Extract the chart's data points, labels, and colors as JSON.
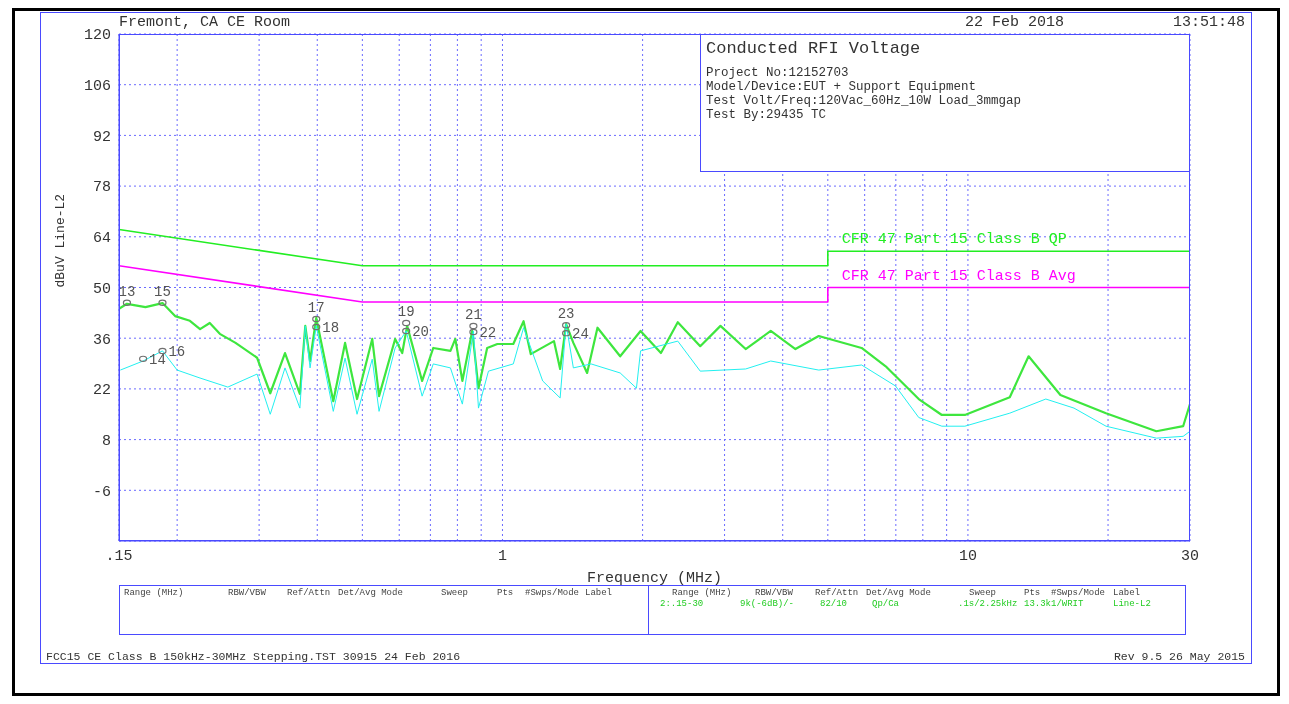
{
  "chart_data": {
    "type": "line",
    "title": "Conducted RFI Voltage",
    "xlabel": "Frequency (MHz)",
    "ylabel": "dBuV Line-L2",
    "log": "x",
    "grid": true,
    "legend": false,
    "xlim": [
      0.15,
      30
    ],
    "xticks": [
      {
        "value": 0.15,
        "label": ".15"
      },
      {
        "value": 0.2,
        "label": null
      },
      {
        "value": 0.3,
        "label": null
      },
      {
        "value": 0.4,
        "label": null
      },
      {
        "value": 0.5,
        "label": null
      },
      {
        "value": 0.6,
        "label": null
      },
      {
        "value": 0.7,
        "label": null
      },
      {
        "value": 0.8,
        "label": null
      },
      {
        "value": 0.9,
        "label": null
      },
      1,
      {
        "value": 2,
        "label": null
      },
      {
        "value": 3,
        "label": null
      },
      {
        "value": 4,
        "label": null
      },
      {
        "value": 5,
        "label": null
      },
      {
        "value": 6,
        "label": null
      },
      {
        "value": 7,
        "label": null
      },
      {
        "value": 8,
        "label": null
      },
      {
        "value": 9,
        "label": null
      },
      10,
      {
        "value": 20,
        "label": null
      },
      30
    ],
    "ylim": [
      -20,
      120
    ],
    "yticks": [
      -6,
      8,
      22,
      36,
      50,
      64,
      78,
      92,
      106,
      120
    ],
    "series": [
      {
        "color": "#3ee63e",
        "x": [
          0.15,
          0.156,
          0.171,
          0.186,
          0.198,
          0.213,
          0.224,
          0.235,
          0.247,
          0.267,
          0.297,
          0.317,
          0.341,
          0.367,
          0.377,
          0.386,
          0.398,
          0.433,
          0.459,
          0.487,
          0.525,
          0.543,
          0.588,
          0.609,
          0.624,
          0.672,
          0.71,
          0.773,
          0.792,
          0.82,
          0.861,
          0.888,
          0.927,
          0.975,
          1.055,
          1.11,
          1.15,
          1.29,
          1.33,
          1.37,
          1.42,
          1.52,
          1.6,
          1.79,
          1.98,
          2.19,
          2.38,
          2.66,
          2.94,
          3.33,
          3.77,
          4.26,
          4.78,
          5.91,
          6.69,
          7.84,
          8.79,
          9.85,
          12.3,
          13.5,
          15.8,
          19.8,
          25.4,
          29.0,
          30
        ],
        "values": [
          44.1,
          45.5,
          44.6,
          45.7,
          42.1,
          40.8,
          38.5,
          40.2,
          37.2,
          34.7,
          30.6,
          20.8,
          31.9,
          20.6,
          39.4,
          29.7,
          41.6,
          18.6,
          34.7,
          19.2,
          35.8,
          20.0,
          35.8,
          31.9,
          39.4,
          24.2,
          33.3,
          32.5,
          35.8,
          24.2,
          38.0,
          22.2,
          33.3,
          34.4,
          34.4,
          40.7,
          31.6,
          35.2,
          27.5,
          39.9,
          34.7,
          26.4,
          38.9,
          31.0,
          38.0,
          31.9,
          40.4,
          33.8,
          39.4,
          33.0,
          38.0,
          33.0,
          36.6,
          33.3,
          28.0,
          19.2,
          14.8,
          14.8,
          19.7,
          31.0,
          20.3,
          15.3,
          10.3,
          11.7,
          17.8
        ]
      },
      {
        "color": "#22f0f0",
        "x": [
          0.151,
          0.169,
          0.186,
          0.2,
          0.224,
          0.257,
          0.297,
          0.317,
          0.341,
          0.367,
          0.377,
          0.386,
          0.398,
          0.433,
          0.459,
          0.487,
          0.525,
          0.543,
          0.588,
          0.621,
          0.672,
          0.71,
          0.773,
          0.82,
          0.866,
          0.888,
          0.933,
          1.055,
          1.11,
          1.22,
          1.33,
          1.37,
          1.42,
          1.55,
          1.79,
          1.94,
          1.98,
          2.38,
          2.66,
          3.33,
          3.77,
          4.78,
          5.91,
          6.99,
          7.84,
          8.79,
          9.85,
          12.3,
          14.7,
          16.9,
          19.8,
          25.4,
          29.0,
          30
        ],
        "values": [
          27.2,
          29.7,
          32.5,
          27.2,
          25.0,
          22.5,
          26.1,
          15.0,
          27.8,
          16.7,
          39.4,
          27.8,
          39.4,
          15.8,
          30.5,
          15.0,
          30.2,
          15.8,
          33.3,
          38.0,
          20.0,
          28.9,
          27.8,
          17.8,
          38.0,
          16.7,
          26.9,
          28.9,
          38.9,
          24.2,
          19.5,
          39.9,
          27.8,
          28.9,
          26.4,
          22.2,
          32.5,
          35.2,
          26.9,
          27.5,
          29.7,
          27.2,
          28.6,
          22.8,
          14.1,
          11.7,
          11.7,
          15.3,
          19.2,
          16.7,
          11.7,
          8.4,
          8.9,
          10.3
        ]
      },
      {
        "name": "CFR 47 Part 15 Class B QP",
        "color": "#22ee22",
        "x": [
          0.15,
          0.5,
          5,
          5,
          30
        ],
        "values": [
          66,
          56,
          56,
          60,
          60
        ]
      },
      {
        "name": "CFR 47 Part 15 Class B Avg",
        "color": "#ff00ff",
        "x": [
          0.15,
          0.5,
          5,
          5,
          30
        ],
        "values": [
          56,
          46,
          46,
          50,
          50
        ]
      },
      {
        "type": "scatter",
        "marker": "circle",
        "color": "#707070",
        "x": [
          0.156,
          0.169,
          0.186,
          0.186,
          0.398,
          0.398,
          0.621,
          0.621,
          0.866,
          0.866,
          1.37,
          1.37
        ],
        "values": [
          45.8,
          30.3,
          45.8,
          32.5,
          41.3,
          39.1,
          40.2,
          38.0,
          39.4,
          37.7,
          39.6,
          37.4
        ]
      }
    ],
    "annotations": [
      "Fremont, CA CE Room",
      "22 Feb 2018",
      "13:51:48",
      "Project No:12152703",
      "Model/Device:EUT + Support Equipment",
      "Test Volt/Freq:120Vac_60Hz_10W Load_3mmgap",
      "Test By:29435 TC",
      "Range (MHz)",
      "RBW/VBW",
      "Ref/Attn",
      "Det/Avg Mode",
      "Sweep",
      "Pts",
      "#Swps/Mode",
      "Label",
      "Range (MHz)",
      "RBW/VBW",
      "Ref/Attn",
      "Det/Avg Mode",
      "Sweep",
      "Pts",
      "#Swps/Mode",
      "Label",
      "2:.15-30",
      "9k(-6dB)/-",
      "82/10",
      "Qp/Ca",
      ".1s/2.25kHz",
      "13.3k",
      "1/WRIT",
      "Line-L2",
      "FCC15 CE Class B 150kHz-30MHz Stepping.TST 30915 24 Feb 2016",
      "Rev 9.5 26 May 2015",
      {
        "text": "13",
        "x": 0.156,
        "y": 45.8
      },
      {
        "text": "14",
        "x": 0.169,
        "y": 30.3
      },
      {
        "text": "15",
        "x": 0.186,
        "y": 45.8
      },
      {
        "text": "16",
        "x": 0.186,
        "y": 32.5
      },
      {
        "text": "17",
        "x": 0.398,
        "y": 41.3
      },
      {
        "text": "18",
        "x": 0.398,
        "y": 39.1
      },
      {
        "text": "19",
        "x": 0.621,
        "y": 40.2
      },
      {
        "text": "20",
        "x": 0.621,
        "y": 38.0
      },
      {
        "text": "21",
        "x": 0.866,
        "y": 39.4
      },
      {
        "text": "22",
        "x": 0.866,
        "y": 37.7
      },
      {
        "text": "23",
        "x": 1.37,
        "y": 39.6
      },
      {
        "text": "24",
        "x": 1.37,
        "y": 37.4
      }
    ]
  }
}
